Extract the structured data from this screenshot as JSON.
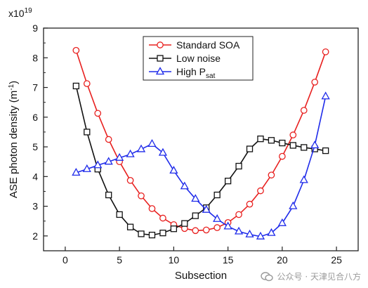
{
  "chart_data": {
    "type": "line",
    "xlabel": "Subsection",
    "ylabel": "ASE photon density (m",
    "ylabel_sup": "-1",
    "ylabel_close": ")",
    "y_scale_label": "x10",
    "y_scale_exp": "19",
    "xlim": [
      -2,
      27
    ],
    "ylim": [
      1.5,
      9
    ],
    "x_ticks": [
      0,
      5,
      10,
      15,
      20,
      25
    ],
    "y_ticks": [
      2,
      3,
      4,
      5,
      6,
      7,
      8,
      9
    ],
    "grid": false,
    "legend_position": "top-center",
    "series": [
      {
        "name": "Standard SOA",
        "color": "#e8201f",
        "marker": "circle",
        "x": [
          1,
          2,
          3,
          4,
          5,
          6,
          7,
          8,
          9,
          10,
          11,
          12,
          13,
          14,
          15,
          16,
          17,
          18,
          19,
          20,
          21,
          22,
          23,
          24
        ],
        "y": [
          8.25,
          7.13,
          6.13,
          5.25,
          4.5,
          3.87,
          3.35,
          2.92,
          2.6,
          2.38,
          2.25,
          2.18,
          2.2,
          2.28,
          2.45,
          2.72,
          3.07,
          3.52,
          4.05,
          4.68,
          5.4,
          6.23,
          7.18,
          8.2
        ]
      },
      {
        "name": "Low noise",
        "color": "#111111",
        "marker": "square",
        "x": [
          1,
          2,
          3,
          4,
          5,
          6,
          7,
          8,
          9,
          10,
          11,
          12,
          13,
          14,
          15,
          16,
          17,
          18,
          19,
          20,
          21,
          22,
          23,
          24
        ],
        "y": [
          7.05,
          5.5,
          4.25,
          3.38,
          2.72,
          2.3,
          2.07,
          2.03,
          2.1,
          2.24,
          2.42,
          2.68,
          2.95,
          3.38,
          3.85,
          4.35,
          4.93,
          5.27,
          5.22,
          5.13,
          5.05,
          4.98,
          4.93,
          4.87
        ]
      },
      {
        "name": "High P",
        "name_sub": "sat",
        "color": "#1f2bea",
        "marker": "triangle",
        "x": [
          1,
          2,
          3,
          4,
          5,
          6,
          7,
          8,
          9,
          10,
          11,
          12,
          13,
          14,
          15,
          16,
          17,
          18,
          19,
          20,
          21,
          22,
          23,
          24
        ],
        "y": [
          4.13,
          4.25,
          4.38,
          4.5,
          4.63,
          4.75,
          4.92,
          5.1,
          4.8,
          4.2,
          3.67,
          3.25,
          2.88,
          2.57,
          2.32,
          2.15,
          2.05,
          1.98,
          2.1,
          2.43,
          3.0,
          3.88,
          5.05,
          6.7
        ]
      }
    ]
  },
  "watermark": {
    "text": "公众号 · 天津见合八方"
  }
}
